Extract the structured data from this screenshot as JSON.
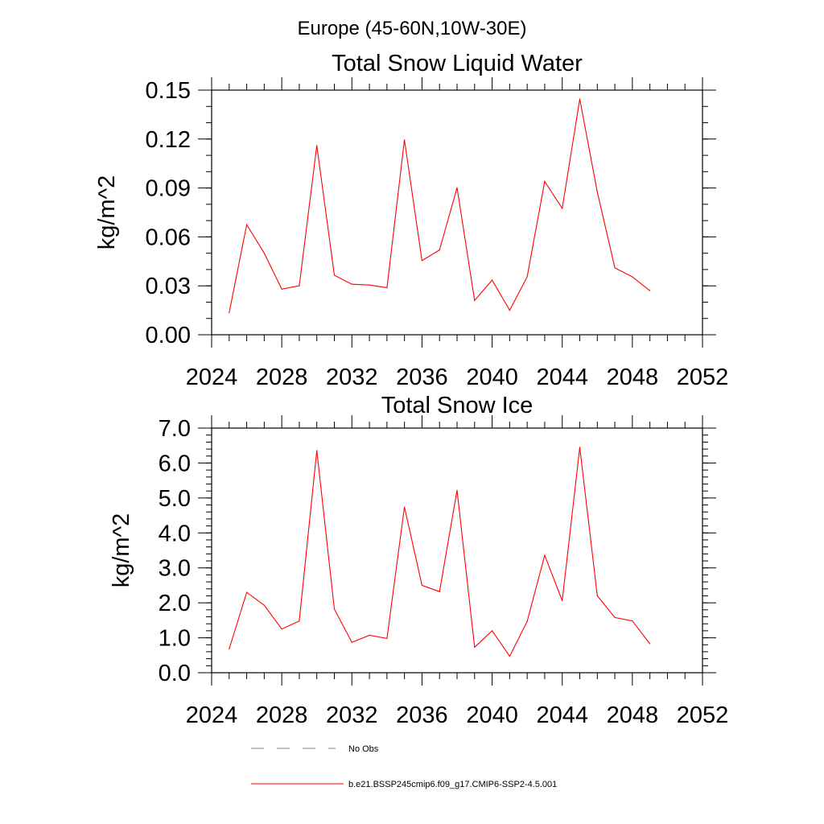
{
  "figure": {
    "title": "Europe (45-60N,10W-30E)"
  },
  "colors": {
    "model": "#ff0000",
    "obs": "#7f7fa0",
    "axis": "#000000"
  },
  "chart_data": [
    {
      "type": "line",
      "title": "Total Snow Liquid Water",
      "ylabel": "kg/m^2",
      "xlabel": "",
      "xlim": [
        2024,
        2052
      ],
      "ylim": [
        0,
        0.15
      ],
      "x_ticks": [
        2024,
        2028,
        2032,
        2036,
        2040,
        2044,
        2048,
        2052
      ],
      "x_tick_labels": [
        "2024",
        "2028",
        "2032",
        "2036",
        "2040",
        "2044",
        "2048",
        "2052"
      ],
      "y_ticks": [
        0,
        0.03,
        0.06,
        0.09,
        0.12,
        0.15
      ],
      "y_tick_labels": [
        "0.00",
        "0.03",
        "0.06",
        "0.09",
        "0.12",
        "0.15"
      ],
      "y_minor_step": 0.01,
      "grid": false,
      "series": [
        {
          "name": "b.e21.BSSP245cmip6.f09_g17.CMIP6-SSP2-4.5.001",
          "x": [
            2025,
            2026,
            2027,
            2028,
            2029,
            2030,
            2031,
            2032,
            2033,
            2034,
            2035,
            2036,
            2037,
            2038,
            2039,
            2040,
            2041,
            2042,
            2043,
            2044,
            2045,
            2046,
            2047,
            2048,
            2049
          ],
          "values": [
            0.0135,
            0.0675,
            0.05,
            0.028,
            0.03,
            0.116,
            0.0365,
            0.031,
            0.0305,
            0.0288,
            0.1195,
            0.0455,
            0.052,
            0.0902,
            0.021,
            0.0335,
            0.015,
            0.0355,
            0.094,
            0.0775,
            0.1445,
            0.0875,
            0.041,
            0.0355,
            0.027
          ]
        }
      ]
    },
    {
      "type": "line",
      "title": "Total Snow Ice",
      "ylabel": "kg/m^2",
      "xlabel": "",
      "xlim": [
        2024,
        2052
      ],
      "ylim": [
        0,
        7.0
      ],
      "x_ticks": [
        2024,
        2028,
        2032,
        2036,
        2040,
        2044,
        2048,
        2052
      ],
      "x_tick_labels": [
        "2024",
        "2028",
        "2032",
        "2036",
        "2040",
        "2044",
        "2048",
        "2052"
      ],
      "y_ticks": [
        0,
        1,
        2,
        3,
        4,
        5,
        6,
        7
      ],
      "y_tick_labels": [
        "0.0",
        "1.0",
        "2.0",
        "3.0",
        "4.0",
        "5.0",
        "6.0",
        "7.0"
      ],
      "y_minor_step": 0.2,
      "grid": false,
      "series": [
        {
          "name": "b.e21.BSSP245cmip6.f09_g17.CMIP6-SSP2-4.5.001",
          "x": [
            2025,
            2026,
            2027,
            2028,
            2029,
            2030,
            2031,
            2032,
            2033,
            2034,
            2035,
            2036,
            2037,
            2038,
            2039,
            2040,
            2041,
            2042,
            2043,
            2044,
            2045,
            2046,
            2047,
            2048,
            2049
          ],
          "values": [
            0.68,
            2.3,
            1.93,
            1.25,
            1.48,
            6.36,
            1.82,
            0.87,
            1.07,
            0.98,
            4.74,
            2.5,
            2.32,
            5.22,
            0.73,
            1.2,
            0.47,
            1.47,
            3.36,
            2.06,
            6.45,
            2.2,
            1.58,
            1.48,
            0.83
          ]
        }
      ]
    }
  ],
  "legend": {
    "placement": "bottom",
    "entries": [
      {
        "label": "No Obs",
        "style": "dashed",
        "color_key": "obs"
      },
      {
        "label": "b.e21.BSSP245cmip6.f09_g17.CMIP6-SSP2-4.5.001",
        "style": "solid",
        "color_key": "model"
      }
    ]
  }
}
